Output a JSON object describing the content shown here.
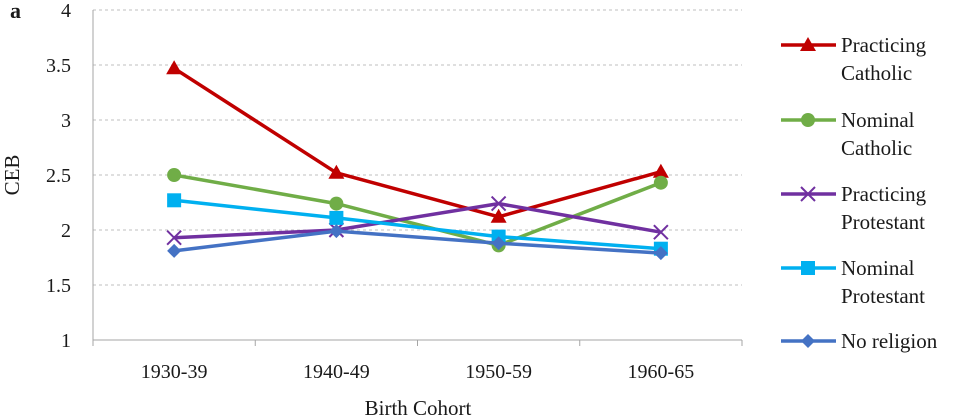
{
  "panel_label": "a",
  "chart_data": {
    "type": "line",
    "categories": [
      "1930-39",
      "1940-49",
      "1950-59",
      "1960-65"
    ],
    "xlabel": "Birth Cohort",
    "ylabel": "CEB",
    "ylim": [
      1,
      4
    ],
    "yticks": [
      "1",
      "1.5",
      "2",
      "2.5",
      "3",
      "3.5",
      "4"
    ],
    "grid": "horizontal dashed",
    "legend_position": "right",
    "series": [
      {
        "name": "Practicing Catholic",
        "legend_lines": [
          "Practicing",
          "Catholic"
        ],
        "values": [
          3.47,
          2.52,
          2.12,
          2.53
        ],
        "color": "#c00000",
        "marker": "triangle"
      },
      {
        "name": "Nominal Catholic",
        "legend_lines": [
          "Nominal",
          "Catholic"
        ],
        "values": [
          2.5,
          2.24,
          1.86,
          2.43
        ],
        "color": "#70ad47",
        "marker": "circle"
      },
      {
        "name": "Practicing Protestant",
        "legend_lines": [
          "Practicing",
          "Protestant"
        ],
        "values": [
          1.93,
          2.0,
          2.24,
          1.98
        ],
        "color": "#7030a0",
        "marker": "x"
      },
      {
        "name": "Nominal Protestant",
        "legend_lines": [
          "Nominal",
          "Protestant"
        ],
        "values": [
          2.27,
          2.11,
          1.94,
          1.83
        ],
        "color": "#00b0f0",
        "marker": "square"
      },
      {
        "name": "No religion",
        "legend_lines": [
          "No religion"
        ],
        "values": [
          1.81,
          1.99,
          1.88,
          1.79
        ],
        "color": "#4472c4",
        "marker": "diamond"
      }
    ]
  }
}
